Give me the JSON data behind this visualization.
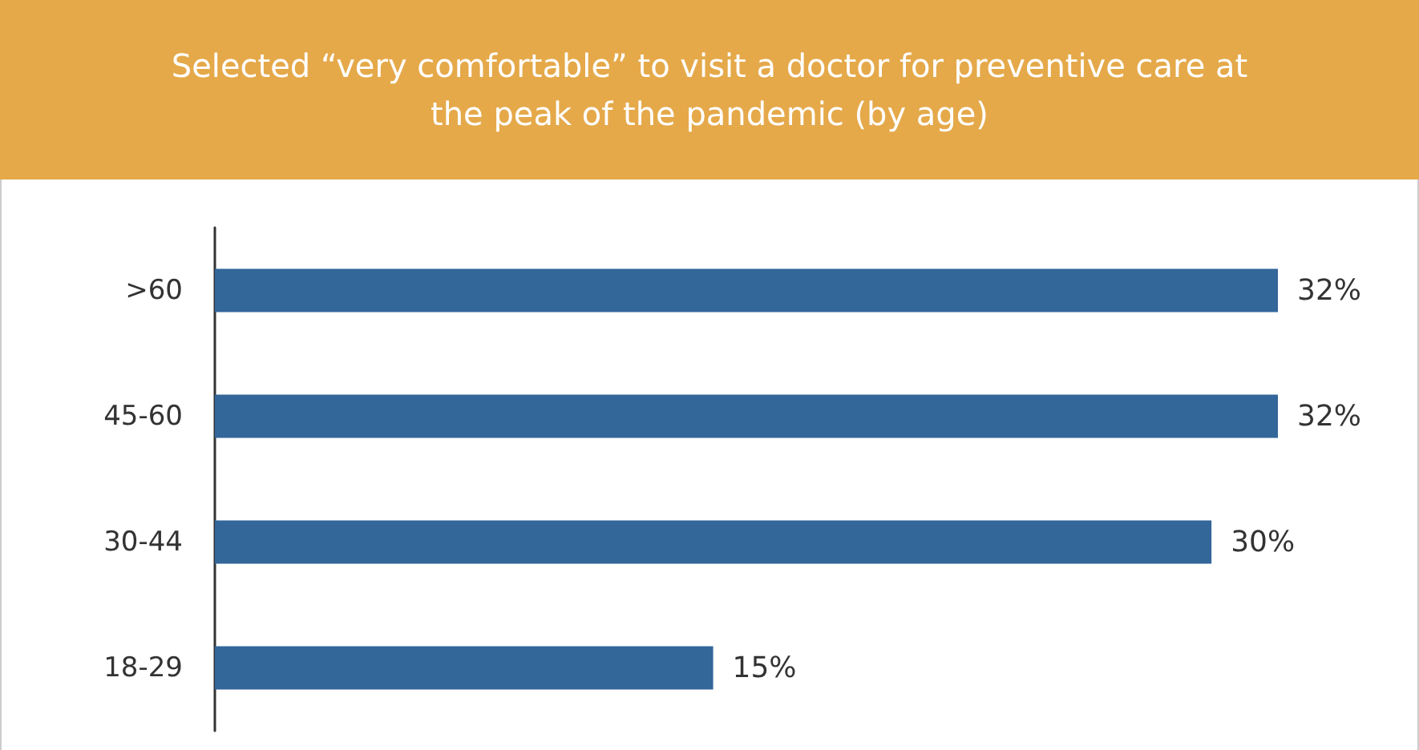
{
  "chart_data": {
    "type": "bar",
    "orientation": "horizontal",
    "title": "Selected “very comfortable” to visit a doctor for preventive care at the peak of the pandemic (by age)",
    "categories": [
      ">60",
      "45-60",
      "30-44",
      "18-29"
    ],
    "values": [
      32,
      32,
      30,
      15
    ],
    "value_labels": [
      "32%",
      "32%",
      "30%",
      "15%"
    ],
    "color": "#336699"
  }
}
